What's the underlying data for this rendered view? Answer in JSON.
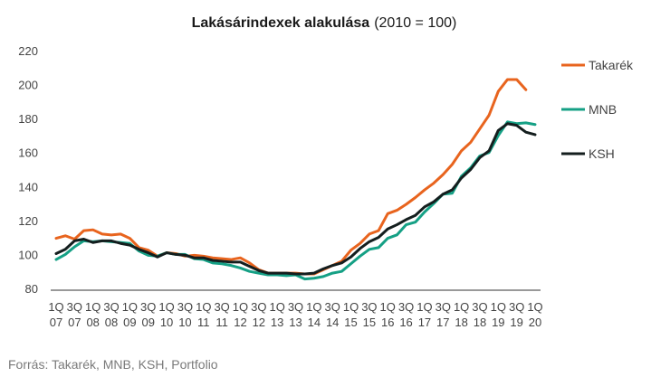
{
  "chart_data": {
    "type": "line",
    "title": "Lakásárindexek alakulása",
    "subtitle": "(2010 = 100)",
    "source": "Forrás: Takarék, MNB, KSH, Portfolio",
    "ylim": [
      80,
      220
    ],
    "yticks": [
      "80",
      "100",
      "120",
      "140",
      "160",
      "180",
      "200",
      "220"
    ],
    "x_tick_labels": [
      [
        "1Q",
        "07"
      ],
      [
        "3Q",
        "07"
      ],
      [
        "1Q",
        "08"
      ],
      [
        "3Q",
        "08"
      ],
      [
        "1Q",
        "09"
      ],
      [
        "3Q",
        "09"
      ],
      [
        "1Q",
        "10"
      ],
      [
        "3Q",
        "10"
      ],
      [
        "1Q",
        "11"
      ],
      [
        "3Q",
        "11"
      ],
      [
        "1Q",
        "12"
      ],
      [
        "3Q",
        "12"
      ],
      [
        "1Q",
        "13"
      ],
      [
        "3Q",
        "13"
      ],
      [
        "1Q",
        "14"
      ],
      [
        "3Q",
        "14"
      ],
      [
        "1Q",
        "15"
      ],
      [
        "3Q",
        "15"
      ],
      [
        "1Q",
        "16"
      ],
      [
        "3Q",
        "16"
      ],
      [
        "1Q",
        "17"
      ],
      [
        "3Q",
        "17"
      ],
      [
        "1Q",
        "18"
      ],
      [
        "3Q",
        "18"
      ],
      [
        "1Q",
        "19"
      ],
      [
        "3Q",
        "19"
      ],
      [
        "1Q",
        "20"
      ]
    ],
    "x_quarters": [
      "2007Q1",
      "2007Q2",
      "2007Q3",
      "2007Q4",
      "2008Q1",
      "2008Q2",
      "2008Q3",
      "2008Q4",
      "2009Q1",
      "2009Q2",
      "2009Q3",
      "2009Q4",
      "2010Q1",
      "2010Q2",
      "2010Q3",
      "2010Q4",
      "2011Q1",
      "2011Q2",
      "2011Q3",
      "2011Q4",
      "2012Q1",
      "2012Q2",
      "2012Q3",
      "2012Q4",
      "2013Q1",
      "2013Q2",
      "2013Q3",
      "2013Q4",
      "2014Q1",
      "2014Q2",
      "2014Q3",
      "2014Q4",
      "2015Q1",
      "2015Q2",
      "2015Q3",
      "2015Q4",
      "2016Q1",
      "2016Q2",
      "2016Q3",
      "2016Q4",
      "2017Q1",
      "2017Q2",
      "2017Q3",
      "2017Q4",
      "2018Q1",
      "2018Q2",
      "2018Q3",
      "2018Q4",
      "2019Q1",
      "2019Q2",
      "2019Q3",
      "2019Q4",
      "2020Q1"
    ],
    "grid": false,
    "legend_placement": "right",
    "series": [
      {
        "name": "Takarék",
        "color": "#e8641e",
        "values": [
          109.5,
          111,
          109,
          114,
          114.5,
          112,
          111.5,
          112,
          109.5,
          104,
          102.5,
          99,
          101,
          100.5,
          99,
          99.5,
          99,
          98,
          97.5,
          97,
          98,
          95,
          91,
          89,
          89,
          89,
          89,
          88.5,
          88.5,
          91,
          93.5,
          96,
          102.5,
          106.5,
          112,
          114,
          124,
          126,
          129.5,
          133.5,
          138,
          142,
          147,
          153,
          161,
          166,
          174,
          182,
          196,
          203,
          203,
          197,
          null
        ]
      },
      {
        "name": "MNB",
        "color": "#15a085",
        "values": [
          97,
          100,
          104.5,
          108,
          107.5,
          108,
          107.5,
          107,
          106.5,
          102,
          99.5,
          99,
          101,
          100,
          100,
          97.5,
          97,
          95,
          94.5,
          93.5,
          92,
          90,
          89,
          88,
          88,
          87.5,
          88,
          85.5,
          86,
          87,
          89,
          90,
          94.5,
          99,
          103,
          104,
          109.5,
          111.5,
          117.5,
          119,
          125,
          130,
          135.5,
          136,
          146,
          151,
          158,
          160,
          170,
          178,
          177,
          177.5,
          176.5
        ]
      },
      {
        "name": "KSH",
        "color": "#141e1e",
        "values": [
          100.5,
          103,
          108,
          109,
          107,
          108,
          108,
          106.5,
          105.5,
          103,
          101,
          98.5,
          101,
          100,
          99.5,
          98,
          98,
          96.5,
          96,
          95.5,
          95.5,
          93,
          90.5,
          89,
          89,
          89,
          88.5,
          88.5,
          89,
          91.5,
          93.5,
          95,
          98.5,
          103.5,
          107.5,
          110,
          115,
          117.5,
          120.5,
          123,
          128,
          131,
          135.5,
          138,
          145,
          150,
          157,
          161,
          173,
          177,
          176,
          172,
          170.5
        ]
      }
    ]
  }
}
